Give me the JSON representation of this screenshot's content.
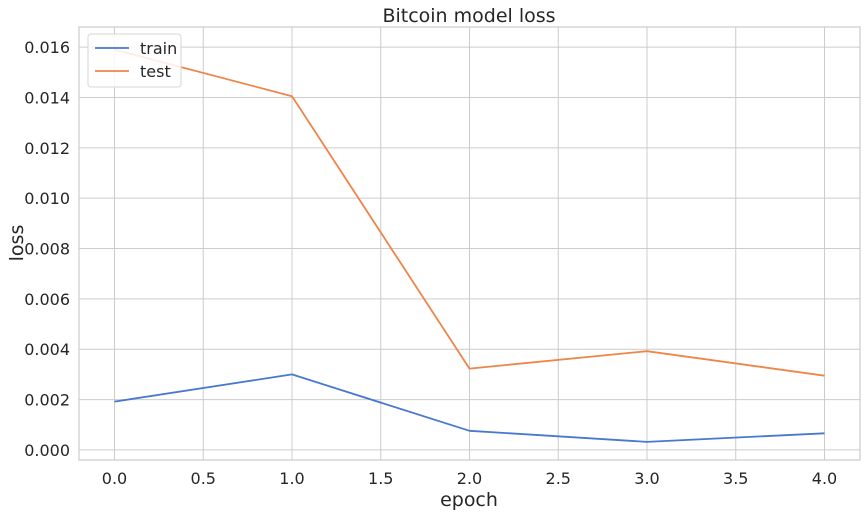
{
  "chart_data": {
    "type": "line",
    "title": "Bitcoin model loss",
    "xlabel": "epoch",
    "ylabel": "loss",
    "xlim": [
      -0.2,
      4.2
    ],
    "ylim": [
      -0.0004,
      0.0168
    ],
    "xticks": [
      0.0,
      0.5,
      1.0,
      1.5,
      2.0,
      2.5,
      3.0,
      3.5,
      4.0
    ],
    "xtick_labels": [
      "0.0",
      "0.5",
      "1.0",
      "1.5",
      "2.0",
      "2.5",
      "3.0",
      "3.5",
      "4.0"
    ],
    "yticks": [
      0.0,
      0.002,
      0.004,
      0.006,
      0.008,
      0.01,
      0.012,
      0.014,
      0.016
    ],
    "ytick_labels": [
      "0.000",
      "0.002",
      "0.004",
      "0.006",
      "0.008",
      "0.010",
      "0.012",
      "0.014",
      "0.016"
    ],
    "grid": true,
    "legend_position": "upper-left",
    "x": [
      0,
      1,
      2,
      3,
      4
    ],
    "series": [
      {
        "name": "train",
        "color": "#4878d0",
        "values": [
          0.00192,
          0.003,
          0.00076,
          0.00032,
          0.00066
        ]
      },
      {
        "name": "test",
        "color": "#ee854a",
        "values": [
          0.0159,
          0.01405,
          0.00323,
          0.00392,
          0.00295
        ]
      }
    ]
  }
}
